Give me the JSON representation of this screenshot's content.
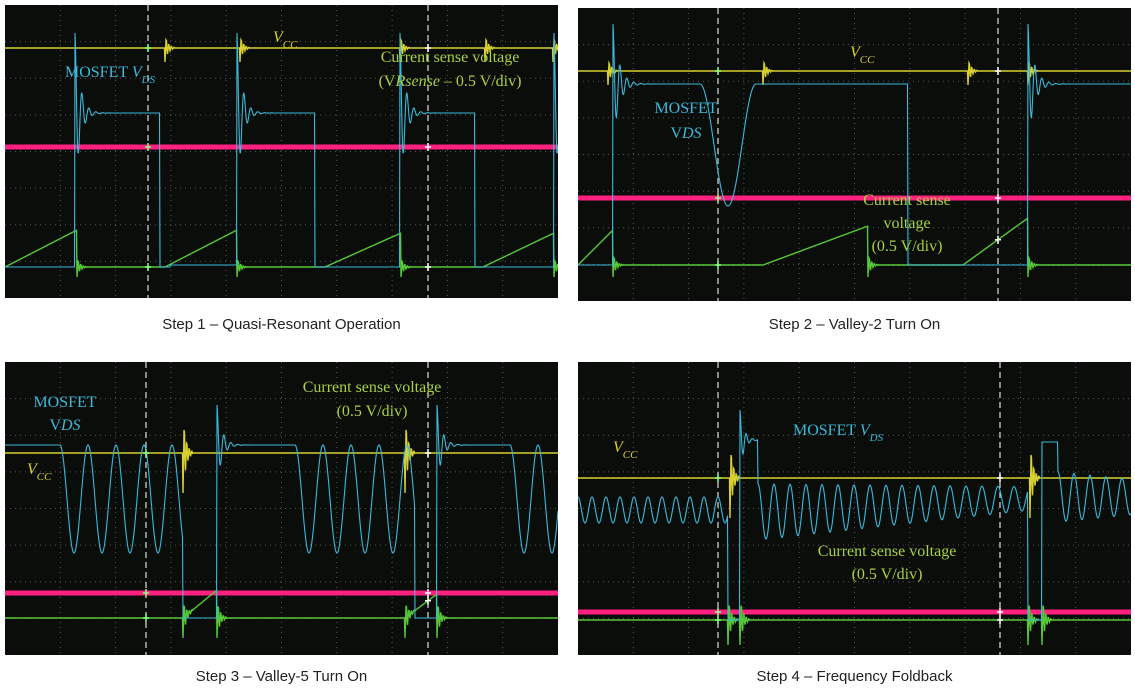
{
  "panels": [
    {
      "caption": "Step 1 – Quasi-Resonant Operation",
      "labels": [
        [
          [
            "V",
            "CC"
          ]
        ],
        [
          [
            "MOSFET ",
            "V",
            "DS"
          ]
        ],
        [
          [
            "Current sense voltage"
          ],
          [
            "(V",
            "Rsense",
            " – 0.5 V/div)"
          ]
        ]
      ]
    },
    {
      "caption": "Step 2 – Valley-2 Turn On",
      "labels": [
        [
          [
            "V",
            "CC"
          ]
        ],
        [
          [
            "MOSFET"
          ],
          [
            "V",
            "DS"
          ]
        ],
        [
          [
            "Current sense"
          ],
          [
            "voltage"
          ],
          [
            "(0.5 V/div)"
          ]
        ]
      ]
    },
    {
      "caption": "Step 3 – Valley-5 Turn On",
      "labels": [
        [
          [
            "V",
            "CC"
          ]
        ],
        [
          [
            "MOSFET"
          ],
          [
            "V",
            "DS"
          ]
        ],
        [
          [
            "Current sense voltage"
          ],
          [
            "(0.5 V/div)"
          ]
        ]
      ]
    },
    {
      "caption": "Step 4 – Frequency Foldback",
      "labels": [
        [
          [
            "V",
            "CC"
          ]
        ],
        [
          [
            "MOSFET ",
            "V",
            "DS"
          ]
        ],
        [
          [
            "Current sense voltage"
          ],
          [
            "(0.5 V/div)"
          ]
        ]
      ]
    }
  ]
}
